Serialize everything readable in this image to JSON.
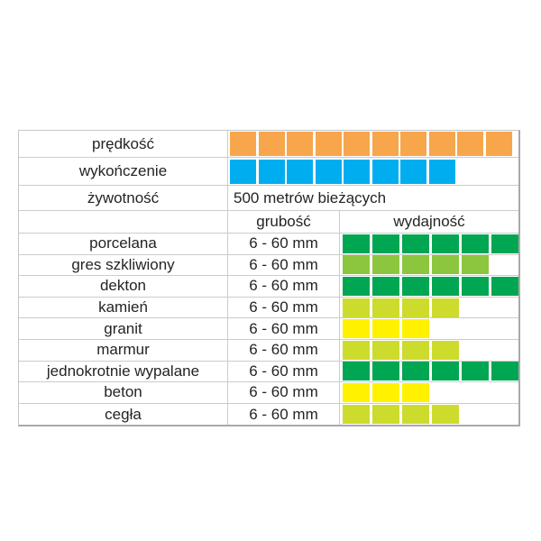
{
  "colors": {
    "orange": "#F7A64B",
    "blue": "#00AEEF",
    "green": "#00A651",
    "light_green": "#8CC63E",
    "yellow_green": "#CDDB2D",
    "yellow": "#FFF100"
  },
  "top_rows": {
    "speed": {
      "label": "prędkość",
      "count": 10,
      "color": "orange"
    },
    "finish": {
      "label": "wykończenie",
      "count": 8,
      "color": "blue"
    },
    "lifespan": {
      "label": "żywotność",
      "value": "500 metrów bieżących"
    }
  },
  "header": {
    "thickness": "grubość",
    "efficiency": "wydajność"
  },
  "materials": [
    {
      "name": "porcelana",
      "thickness": "6 - 60 mm",
      "count": 6,
      "color": "green"
    },
    {
      "name": "gres szkliwiony",
      "thickness": "6 - 60 mm",
      "count": 5,
      "color": "light_green"
    },
    {
      "name": "dekton",
      "thickness": "6 - 60 mm",
      "count": 6,
      "color": "green"
    },
    {
      "name": "kamień",
      "thickness": "6 - 60 mm",
      "count": 4,
      "color": "yellow_green"
    },
    {
      "name": "granit",
      "thickness": "6 - 60 mm",
      "count": 3,
      "color": "yellow"
    },
    {
      "name": "marmur",
      "thickness": "6 - 60 mm",
      "count": 4,
      "color": "yellow_green"
    },
    {
      "name": "jednokrotnie wypalane",
      "thickness": "6 - 60 mm",
      "count": 6,
      "color": "green"
    },
    {
      "name": "beton",
      "thickness": "6 - 60 mm",
      "count": 3,
      "color": "yellow"
    },
    {
      "name": "cegła",
      "thickness": "6 - 60 mm",
      "count": 4,
      "color": "yellow_green"
    }
  ],
  "chart_data": {
    "type": "table",
    "attribute_rows": [
      {
        "label": "prędkość",
        "filled_squares": 10,
        "color_hex": "#F7A64B"
      },
      {
        "label": "wykończenie",
        "filled_squares": 8,
        "color_hex": "#00AEEF"
      },
      {
        "label": "żywotność",
        "value": "500 metrów bieżących"
      }
    ],
    "column_headers": [
      "grubość",
      "wydajność"
    ],
    "rows": [
      {
        "material": "porcelana",
        "grubosc": "6 - 60 mm",
        "wydajnosc_squares": 6,
        "color_hex": "#00A651"
      },
      {
        "material": "gres szkliwiony",
        "grubosc": "6 - 60 mm",
        "wydajnosc_squares": 5,
        "color_hex": "#8CC63E"
      },
      {
        "material": "dekton",
        "grubosc": "6 - 60 mm",
        "wydajnosc_squares": 6,
        "color_hex": "#00A651"
      },
      {
        "material": "kamień",
        "grubosc": "6 - 60 mm",
        "wydajnosc_squares": 4,
        "color_hex": "#CDDB2D"
      },
      {
        "material": "granit",
        "grubosc": "6 - 60 mm",
        "wydajnosc_squares": 3,
        "color_hex": "#FFF100"
      },
      {
        "material": "marmur",
        "grubosc": "6 - 60 mm",
        "wydajnosc_squares": 4,
        "color_hex": "#CDDB2D"
      },
      {
        "material": "jednokrotnie wypalane",
        "grubosc": "6 - 60 mm",
        "wydajnosc_squares": 6,
        "color_hex": "#00A651"
      },
      {
        "material": "beton",
        "grubosc": "6 - 60 mm",
        "wydajnosc_squares": 3,
        "color_hex": "#FFF100"
      },
      {
        "material": "cegła",
        "grubosc": "6 - 60 mm",
        "wydajnosc_squares": 4,
        "color_hex": "#CDDB2D"
      }
    ]
  }
}
